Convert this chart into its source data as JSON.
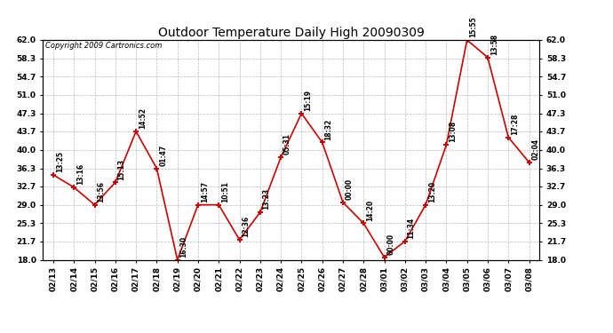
{
  "title": "Outdoor Temperature Daily High 20090309",
  "copyright": "Copyright 2009 Cartronics.com",
  "x_labels": [
    "02/13",
    "02/14",
    "02/15",
    "02/16",
    "02/17",
    "02/18",
    "02/19",
    "02/20",
    "02/21",
    "02/22",
    "02/23",
    "02/24",
    "02/25",
    "02/26",
    "02/27",
    "02/28",
    "03/01",
    "03/02",
    "03/03",
    "03/04",
    "03/05",
    "03/06",
    "03/07",
    "03/08"
  ],
  "y_values": [
    35.0,
    32.5,
    29.0,
    33.5,
    43.7,
    36.3,
    18.0,
    29.0,
    29.0,
    22.0,
    27.5,
    38.5,
    47.3,
    41.5,
    29.5,
    25.3,
    18.5,
    21.7,
    29.0,
    41.0,
    62.0,
    58.5,
    42.5,
    37.5
  ],
  "time_labels": [
    "13:25",
    "13:16",
    "13:56",
    "15:13",
    "14:52",
    "01:47",
    "16:30",
    "14:57",
    "10:51",
    "12:36",
    "13:23",
    "05:31",
    "15:19",
    "18:32",
    "00:00",
    "14:20",
    "00:00",
    "11:34",
    "13:20",
    "13:08",
    "15:55",
    "13:58",
    "17:28",
    "02:04"
  ],
  "ylim": [
    18.0,
    62.0
  ],
  "yticks": [
    18.0,
    21.7,
    25.3,
    29.0,
    32.7,
    36.3,
    40.0,
    43.7,
    47.3,
    51.0,
    54.7,
    58.3,
    62.0
  ],
  "line_color": "#cc0000",
  "marker_color": "#cc0000",
  "grid_color": "#bbbbbb",
  "bg_color": "#ffffff",
  "title_fontsize": 10,
  "copyright_fontsize": 6,
  "label_fontsize": 5.5,
  "tick_fontsize": 6.5
}
